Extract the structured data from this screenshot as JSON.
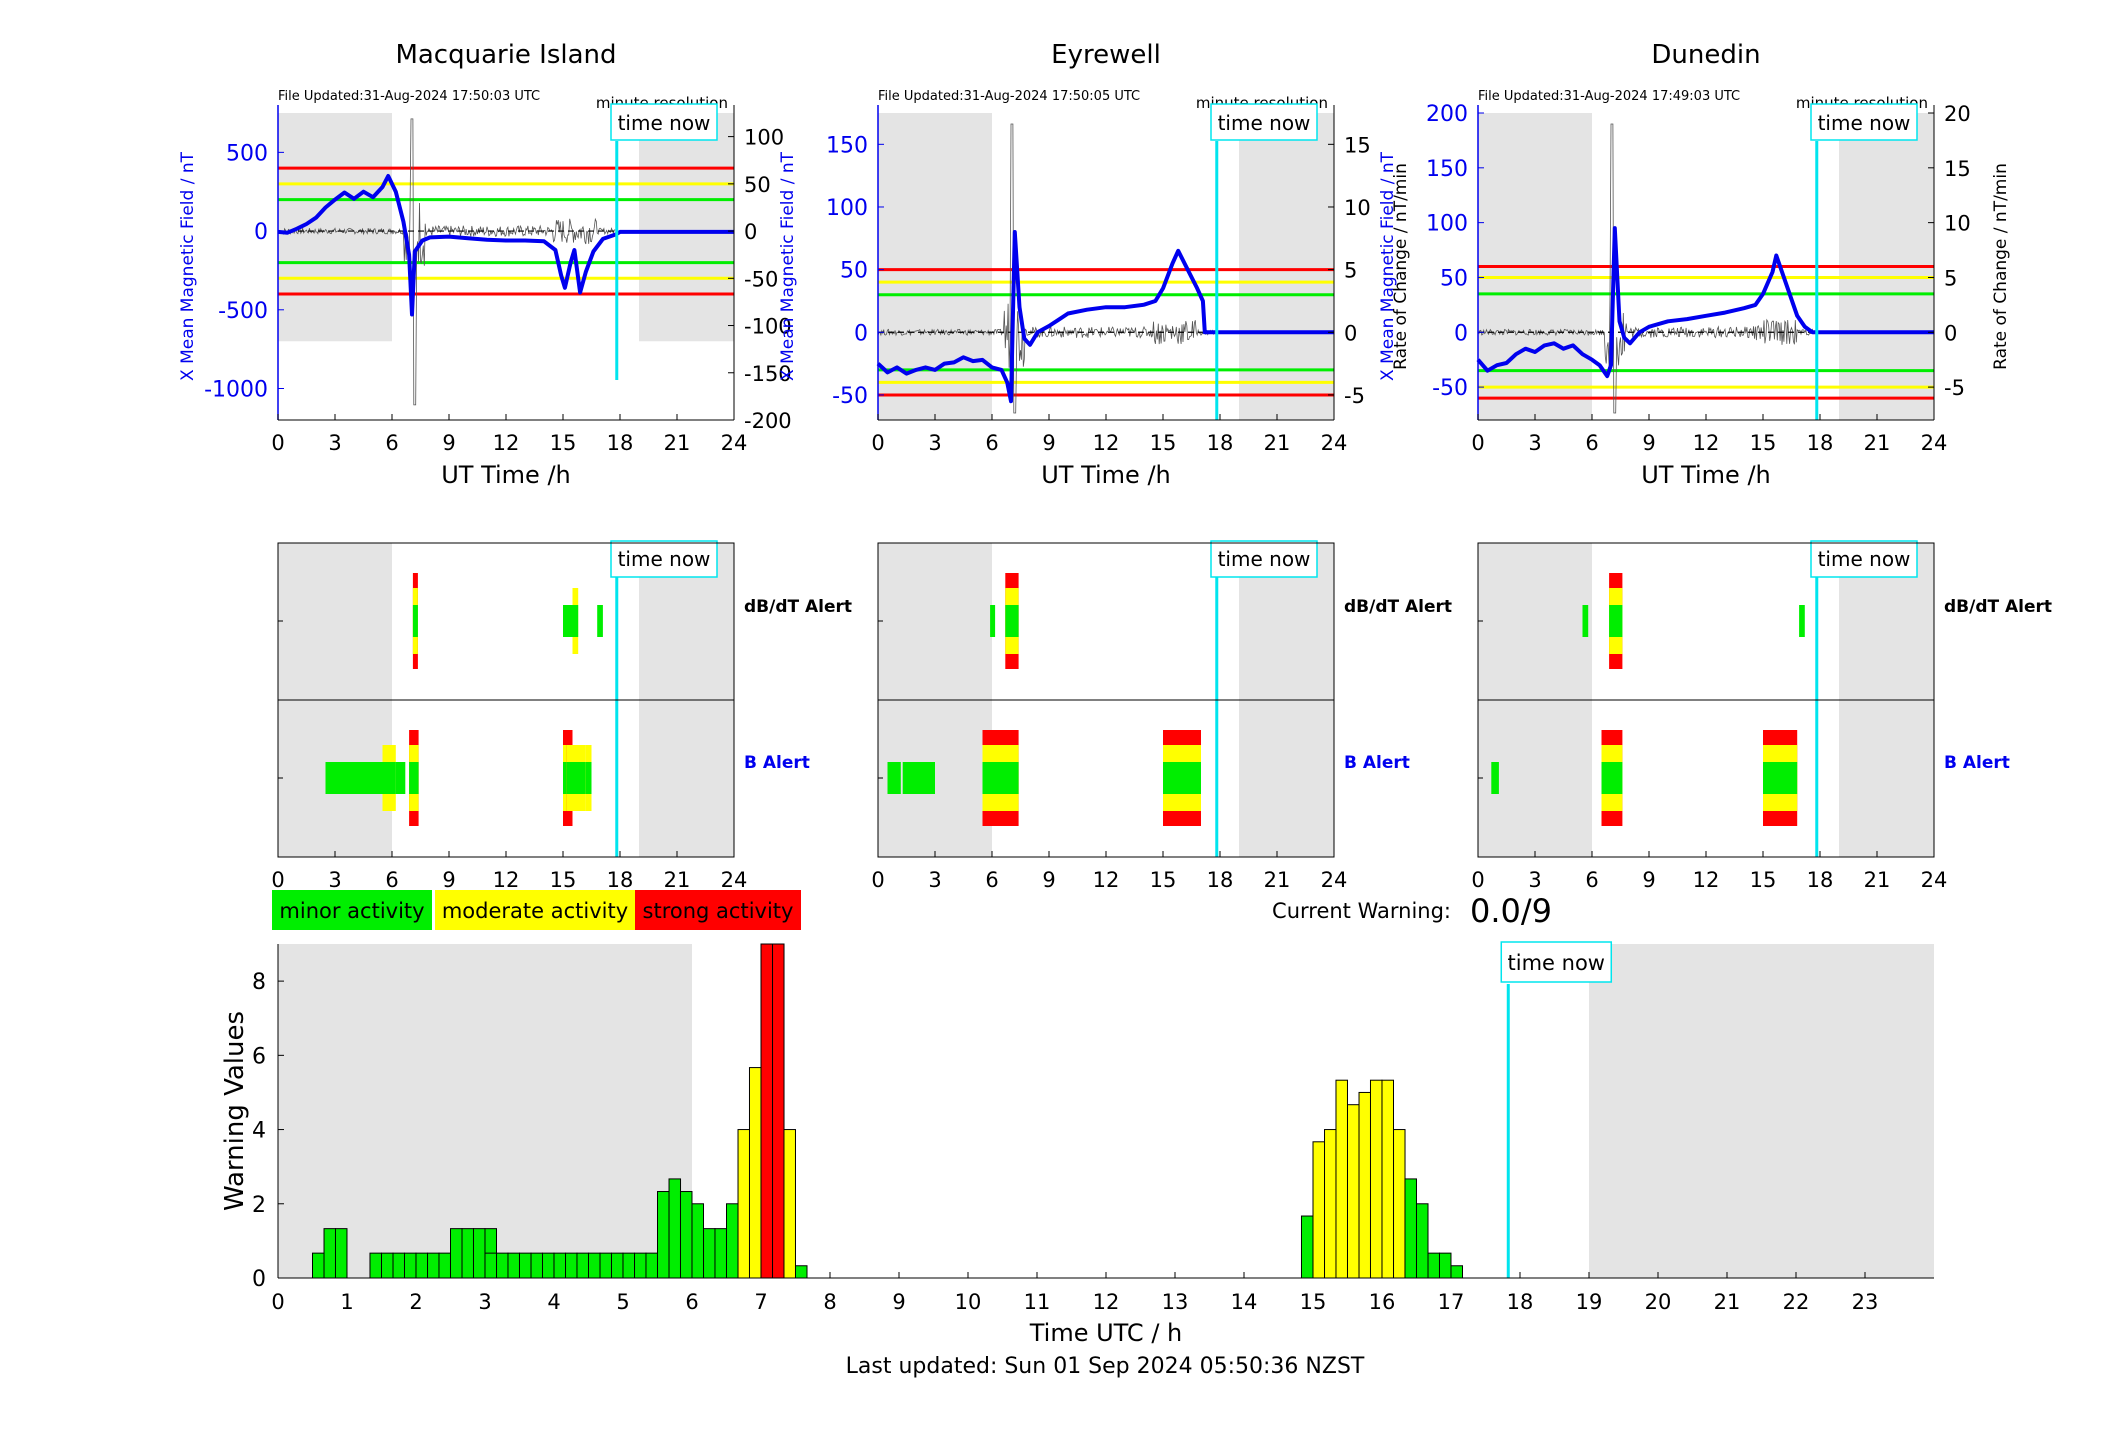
{
  "colors": {
    "minor": "#00ee00",
    "moderate": "#ffff00",
    "strong": "#ff0000",
    "field": "#0000ee",
    "night": "#e4e4e4",
    "now": "#00e5ee"
  },
  "panels": [
    {
      "id": "macquarie",
      "title": "Macquarie Island",
      "file_updated": "File Updated:31-Aug-2024 17:50:03 UTC",
      "resolution": "minute resolution",
      "ylabel_left": "X Mean Magnetic Field / nT",
      "ylabel_right": "",
      "ylim_left": [
        -1200,
        750
      ],
      "ylim_right": [
        -200,
        125
      ],
      "left_ticks": [
        -1000,
        -500,
        0,
        500
      ],
      "right_ticks": [
        -200,
        -150,
        -100,
        -50,
        0,
        50,
        100
      ],
      "thresholds": {
        "strong": 400,
        "moderate": 300,
        "minor": 200
      },
      "field_series": [
        [
          0,
          -5
        ],
        [
          0.5,
          -10
        ],
        [
          1,
          15
        ],
        [
          1.5,
          45
        ],
        [
          2,
          85
        ],
        [
          2.5,
          150
        ],
        [
          3,
          200
        ],
        [
          3.5,
          245
        ],
        [
          4,
          205
        ],
        [
          4.5,
          250
        ],
        [
          5,
          215
        ],
        [
          5.5,
          280
        ],
        [
          5.8,
          350
        ],
        [
          6.2,
          250
        ],
        [
          6.6,
          60
        ],
        [
          6.9,
          -150
        ],
        [
          7.05,
          -530
        ],
        [
          7.2,
          -130
        ],
        [
          7.6,
          -60
        ],
        [
          8,
          -40
        ],
        [
          9,
          -35
        ],
        [
          10,
          -45
        ],
        [
          11,
          -55
        ],
        [
          12,
          -60
        ],
        [
          13,
          -60
        ],
        [
          14,
          -65
        ],
        [
          14.6,
          -120
        ],
        [
          14.9,
          -280
        ],
        [
          15.1,
          -360
        ],
        [
          15.4,
          -200
        ],
        [
          15.6,
          -120
        ],
        [
          15.9,
          -390
        ],
        [
          16.2,
          -260
        ],
        [
          16.6,
          -130
        ],
        [
          17.1,
          -50
        ],
        [
          17.8,
          -20
        ],
        [
          18,
          -5
        ],
        [
          24,
          -5
        ]
      ],
      "night_left": 6.0,
      "night_right": 19.0,
      "now": 17.83,
      "xlabel": "UT Time /h",
      "alerts": {
        "dbdt": [
          [
            7.1,
            7.3,
            3
          ],
          [
            15.5,
            15.8,
            2
          ],
          [
            15.0,
            15.5,
            1
          ],
          [
            16.8,
            17.1,
            1
          ]
        ],
        "b": [
          [
            2.5,
            5.5,
            1
          ],
          [
            5.5,
            6.2,
            2
          ],
          [
            6.2,
            6.7,
            1
          ],
          [
            6.9,
            7.4,
            3
          ],
          [
            15.0,
            15.2,
            3
          ],
          [
            15.2,
            15.5,
            3
          ],
          [
            15.5,
            16.2,
            2
          ],
          [
            16.2,
            16.5,
            2
          ]
        ]
      }
    },
    {
      "id": "eyrewell",
      "title": "Eyrewell",
      "file_updated": "File Updated:31-Aug-2024 17:50:05 UTC",
      "resolution": "minute resolution",
      "ylabel_left": "X Mean Magnetic Field / nT",
      "ylabel_right": "Rate of Change / nT/min",
      "ylim_left": [
        -70,
        175
      ],
      "ylim_right": [
        -7,
        17.5
      ],
      "left_ticks": [
        -50,
        0,
        50,
        100,
        150
      ],
      "right_ticks": [
        -5,
        0,
        5,
        10,
        15
      ],
      "thresholds": {
        "strong": 50,
        "moderate": 40,
        "minor": 30
      },
      "field_series": [
        [
          0,
          -25
        ],
        [
          0.5,
          -32
        ],
        [
          1,
          -28
        ],
        [
          1.5,
          -33
        ],
        [
          2,
          -30
        ],
        [
          2.5,
          -28
        ],
        [
          3,
          -30
        ],
        [
          3.5,
          -25
        ],
        [
          4,
          -24
        ],
        [
          4.5,
          -20
        ],
        [
          5,
          -23
        ],
        [
          5.5,
          -22
        ],
        [
          6,
          -28
        ],
        [
          6.5,
          -30
        ],
        [
          6.8,
          -40
        ],
        [
          7.0,
          -55
        ],
        [
          7.2,
          80
        ],
        [
          7.45,
          20
        ],
        [
          7.7,
          -5
        ],
        [
          8,
          -10
        ],
        [
          8.4,
          0
        ],
        [
          9,
          5
        ],
        [
          9.5,
          10
        ],
        [
          10,
          15
        ],
        [
          11,
          18
        ],
        [
          12,
          20
        ],
        [
          13,
          20
        ],
        [
          14,
          22
        ],
        [
          14.6,
          25
        ],
        [
          15,
          35
        ],
        [
          15.5,
          55
        ],
        [
          15.8,
          65
        ],
        [
          16.3,
          50
        ],
        [
          16.8,
          35
        ],
        [
          17.1,
          25
        ],
        [
          17.2,
          0
        ],
        [
          24,
          0
        ]
      ],
      "night_left": 6.0,
      "night_right": 19.0,
      "now": 17.83,
      "xlabel": "UT Time /h",
      "alerts": {
        "dbdt": [
          [
            5.9,
            6.1,
            1
          ],
          [
            6.7,
            7.4,
            3
          ]
        ],
        "b": [
          [
            0.5,
            1.2,
            1
          ],
          [
            1.3,
            3.0,
            1
          ],
          [
            5.5,
            7.4,
            3
          ],
          [
            15.0,
            17.0,
            3
          ]
        ]
      }
    },
    {
      "id": "dunedin",
      "title": "Dunedin",
      "file_updated": "File Updated:31-Aug-2024 17:49:03 UTC",
      "resolution": "minute resolution",
      "ylabel_left": "X Mean Magnetic Field / nT",
      "ylabel_right": "Rate of Change / nT/min",
      "ylim_left": [
        -80,
        200
      ],
      "ylim_right": [
        -8,
        20
      ],
      "left_ticks": [
        -50,
        0,
        50,
        100,
        150,
        200
      ],
      "right_ticks": [
        -5,
        0,
        5,
        10,
        15,
        20
      ],
      "thresholds": {
        "strong": 60,
        "moderate": 50,
        "minor": 35
      },
      "field_series": [
        [
          0,
          -25
        ],
        [
          0.5,
          -35
        ],
        [
          1,
          -30
        ],
        [
          1.5,
          -28
        ],
        [
          2,
          -20
        ],
        [
          2.5,
          -15
        ],
        [
          3,
          -18
        ],
        [
          3.5,
          -12
        ],
        [
          4,
          -10
        ],
        [
          4.5,
          -15
        ],
        [
          5,
          -12
        ],
        [
          5.5,
          -20
        ],
        [
          6,
          -25
        ],
        [
          6.4,
          -30
        ],
        [
          6.8,
          -40
        ],
        [
          7.0,
          -30
        ],
        [
          7.2,
          95
        ],
        [
          7.45,
          10
        ],
        [
          7.7,
          -5
        ],
        [
          8,
          -10
        ],
        [
          8.5,
          0
        ],
        [
          9,
          5
        ],
        [
          10,
          10
        ],
        [
          11,
          12
        ],
        [
          12,
          15
        ],
        [
          13,
          18
        ],
        [
          14,
          22
        ],
        [
          14.6,
          25
        ],
        [
          15,
          35
        ],
        [
          15.5,
          55
        ],
        [
          15.7,
          70
        ],
        [
          16.3,
          40
        ],
        [
          16.8,
          15
        ],
        [
          17.2,
          5
        ],
        [
          17.6,
          0
        ],
        [
          24,
          0
        ]
      ],
      "night_left": 6.0,
      "night_right": 19.0,
      "now": 17.83,
      "xlabel": "UT Time /h",
      "alerts": {
        "dbdt": [
          [
            5.5,
            5.8,
            1
          ],
          [
            6.9,
            7.6,
            3
          ],
          [
            16.9,
            17.2,
            1
          ]
        ],
        "b": [
          [
            0.7,
            1.1,
            1
          ],
          [
            6.5,
            7.6,
            3
          ],
          [
            15.0,
            16.8,
            3
          ]
        ]
      }
    }
  ],
  "alert_labels": {
    "dbdt": "dB/dT Alert",
    "b": "B Alert"
  },
  "time_now_label": "time now",
  "x_ticks": [
    "0",
    "3",
    "6",
    "9",
    "12",
    "15",
    "18",
    "21",
    "24"
  ],
  "legend": {
    "minor": "minor activity",
    "moderate": "moderate activity",
    "strong": "strong activity"
  },
  "current_warning": {
    "label": "Current Warning:",
    "value": "0.0/9"
  },
  "chart_data": {
    "type": "bar",
    "title": "",
    "xlabel": "Time UTC / h",
    "ylabel": "Warning Values",
    "xlim": [
      0,
      24
    ],
    "ylim": [
      0,
      9
    ],
    "x_ticks": [
      "0",
      "1",
      "2",
      "3",
      "4",
      "5",
      "6",
      "7",
      "8",
      "9",
      "10",
      "11",
      "12",
      "13",
      "14",
      "15",
      "16",
      "17",
      "18",
      "19",
      "20",
      "21",
      "22",
      "23"
    ],
    "y_ticks": [
      "0",
      "2",
      "4",
      "6",
      "8"
    ],
    "bin_width_h": 0.1667,
    "night_left": 6.0,
    "night_right": 19.0,
    "now": 17.83,
    "bars": [
      [
        0.5,
        0.67,
        "minor"
      ],
      [
        0.667,
        1.33,
        "minor"
      ],
      [
        0.833,
        1.33,
        "minor"
      ],
      [
        1.333,
        0.67,
        "minor"
      ],
      [
        1.5,
        0.67,
        "minor"
      ],
      [
        1.667,
        0.67,
        "minor"
      ],
      [
        1.833,
        0.67,
        "minor"
      ],
      [
        2.0,
        0.67,
        "minor"
      ],
      [
        2.167,
        0.67,
        "minor"
      ],
      [
        2.333,
        0.67,
        "minor"
      ],
      [
        2.5,
        1.33,
        "minor"
      ],
      [
        2.667,
        1.33,
        "minor"
      ],
      [
        2.833,
        1.33,
        "minor"
      ],
      [
        3.0,
        1.33,
        "minor"
      ],
      [
        3.0,
        0.67,
        "minor"
      ],
      [
        3.167,
        0.67,
        "minor"
      ],
      [
        3.333,
        0.67,
        "minor"
      ],
      [
        3.5,
        0.67,
        "minor"
      ],
      [
        3.667,
        0.67,
        "minor"
      ],
      [
        3.833,
        0.67,
        "minor"
      ],
      [
        4.0,
        0.67,
        "minor"
      ],
      [
        4.167,
        0.67,
        "minor"
      ],
      [
        4.333,
        0.67,
        "minor"
      ],
      [
        4.5,
        0.67,
        "minor"
      ],
      [
        4.667,
        0.67,
        "minor"
      ],
      [
        4.833,
        0.67,
        "minor"
      ],
      [
        5.0,
        0.67,
        "minor"
      ],
      [
        5.167,
        0.67,
        "minor"
      ],
      [
        5.333,
        0.67,
        "minor"
      ],
      [
        5.5,
        2.33,
        "minor"
      ],
      [
        5.667,
        2.67,
        "minor"
      ],
      [
        5.833,
        2.33,
        "minor"
      ],
      [
        6.0,
        2.0,
        "minor"
      ],
      [
        6.167,
        1.33,
        "minor"
      ],
      [
        6.333,
        1.33,
        "minor"
      ],
      [
        6.5,
        2.0,
        "minor"
      ],
      [
        6.667,
        4.0,
        "moderate"
      ],
      [
        6.833,
        5.67,
        "moderate"
      ],
      [
        7.0,
        9.0,
        "strong"
      ],
      [
        7.167,
        9.0,
        "strong"
      ],
      [
        7.333,
        4.0,
        "moderate"
      ],
      [
        7.5,
        0.33,
        "minor"
      ],
      [
        14.833,
        1.67,
        "minor"
      ],
      [
        15.0,
        3.67,
        "moderate"
      ],
      [
        15.167,
        4.0,
        "moderate"
      ],
      [
        15.333,
        5.33,
        "moderate"
      ],
      [
        15.5,
        4.67,
        "moderate"
      ],
      [
        15.667,
        5.0,
        "moderate"
      ],
      [
        15.833,
        5.33,
        "moderate"
      ],
      [
        16.0,
        5.33,
        "moderate"
      ],
      [
        16.167,
        4.0,
        "moderate"
      ],
      [
        16.333,
        2.67,
        "minor"
      ],
      [
        16.5,
        2.0,
        "minor"
      ],
      [
        16.667,
        0.67,
        "minor"
      ],
      [
        16.833,
        0.67,
        "minor"
      ],
      [
        17.0,
        0.33,
        "minor"
      ]
    ]
  },
  "last_updated": "Last updated: Sun 01 Sep 2024 05:50:36 NZST"
}
